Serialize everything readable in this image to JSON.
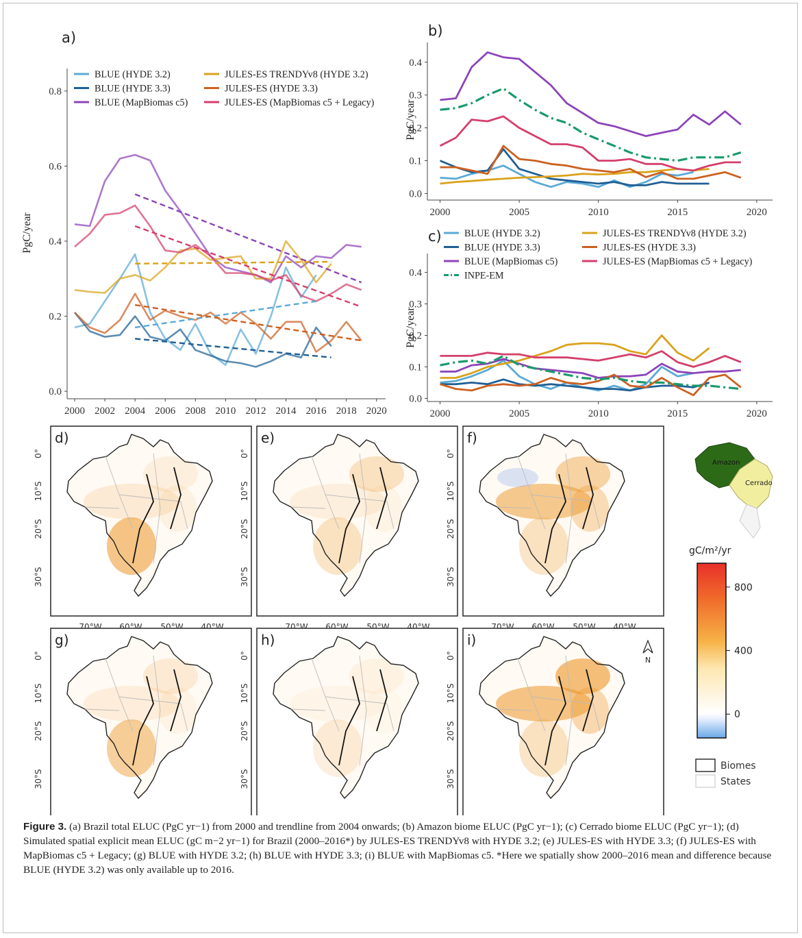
{
  "caption": {
    "label": "Figure 3.",
    "text": "(a) Brazil total ELUC (PgC yr−1) from 2000 and trendline from 2004 onwards; (b) Amazon biome ELUC (PgC yr−1); (c) Cerrado biome ELUC (PgC yr−1); (d) Simulated spatial explicit mean ELUC (gC m−2 yr−1) for Brazil (2000–2016*) by JULES-ES TRENDYv8 with HYDE 3.2; (e) JULES-ES with HYDE 3.3; (f) JULES-ES with MapBiomas c5 + Legacy; (g) BLUE with HYDE 3.2; (h) BLUE with HYDE 3.3; (i) BLUE with MapBiomas c5. *Here we spatially show 2000–2016 mean and difference because BLUE (HYDE 3.2) was only available up to 2016."
  },
  "colors": {
    "blue_h32": "#5aa9d6",
    "blue_h33": "#1f5f94",
    "blue_mb": "#8c44b8",
    "jules_t8": "#d9a21b",
    "jules_h33": "#cc6020",
    "jules_mb": "#d43e6a",
    "inpe": "#1a9a6a"
  },
  "legend": {
    "blue_h32": "BLUE (HYDE 3.2)",
    "blue_h33": "BLUE (HYDE 3.3)",
    "blue_mb": "BLUE (MapBiomas c5)",
    "jules_t8": "JULES-ES TRENDYv8 (HYDE 3.2)",
    "jules_h33": "JULES-ES (HYDE 3.3)",
    "jules_mb": "JULES-ES (MapBiomas c5 + Legacy)",
    "inpe": "INPE-EM"
  },
  "chart_data": [
    {
      "panel": "a)",
      "type": "line",
      "ylabel": "PgC/year",
      "xlim": [
        1999.5,
        2020.6
      ],
      "ylim": [
        -0.02,
        0.86
      ],
      "xticks": [
        "2000",
        "2002",
        "2004",
        "2006",
        "2008",
        "2010",
        "2012",
        "2014",
        "2016",
        "2018",
        "2020"
      ],
      "yticks": [
        "0.0",
        "0.2",
        "0.4",
        "0.6",
        "0.8"
      ],
      "x": [
        2000,
        2001,
        2002,
        2003,
        2004,
        2005,
        2006,
        2007,
        2008,
        2009,
        2010,
        2011,
        2012,
        2013,
        2014,
        2015,
        2016,
        2017,
        2018,
        2019
      ],
      "series": [
        {
          "key": "blue_h32",
          "values": [
            0.17,
            0.18,
            0.24,
            0.3,
            0.365,
            0.21,
            0.14,
            0.11,
            0.18,
            0.1,
            0.07,
            0.165,
            0.1,
            0.2,
            0.33,
            0.25,
            0.31,
            null,
            null,
            null
          ]
        },
        {
          "key": "blue_h33",
          "values": [
            0.21,
            0.16,
            0.145,
            0.15,
            0.2,
            0.145,
            0.135,
            0.165,
            0.11,
            0.095,
            0.08,
            0.075,
            0.065,
            0.08,
            0.1,
            0.09,
            0.17,
            0.12,
            null,
            null
          ]
        },
        {
          "key": "blue_mb",
          "values": [
            0.445,
            0.44,
            0.56,
            0.62,
            0.63,
            0.615,
            0.535,
            0.48,
            0.42,
            0.36,
            0.33,
            0.32,
            0.31,
            0.29,
            0.36,
            0.33,
            0.36,
            0.355,
            0.39,
            0.385
          ]
        },
        {
          "key": "jules_t8",
          "values": [
            0.27,
            0.265,
            0.262,
            0.3,
            0.31,
            0.295,
            0.33,
            0.375,
            0.38,
            0.35,
            0.355,
            0.36,
            0.3,
            0.3,
            0.4,
            0.35,
            0.29,
            0.34,
            null,
            null
          ]
        },
        {
          "key": "jules_h33",
          "values": [
            0.21,
            0.17,
            0.155,
            0.19,
            0.26,
            0.19,
            0.215,
            0.2,
            0.19,
            0.21,
            0.18,
            0.21,
            0.18,
            0.14,
            0.185,
            0.185,
            0.105,
            0.135,
            0.185,
            0.135
          ]
        },
        {
          "key": "jules_mb",
          "values": [
            0.385,
            0.42,
            0.47,
            0.475,
            0.495,
            0.44,
            0.375,
            0.37,
            0.39,
            0.36,
            0.315,
            0.315,
            0.31,
            0.295,
            0.31,
            0.255,
            0.24,
            0.26,
            0.285,
            0.27
          ]
        }
      ],
      "trends": [
        {
          "key": "blue_mb",
          "x": [
            2004,
            2019
          ],
          "y": [
            0.525,
            0.29
          ]
        },
        {
          "key": "jules_mb",
          "x": [
            2004,
            2019
          ],
          "y": [
            0.44,
            0.225
          ]
        },
        {
          "key": "jules_t8",
          "x": [
            2004,
            2017
          ],
          "y": [
            0.34,
            0.345
          ]
        },
        {
          "key": "blue_h32",
          "x": [
            2004,
            2016
          ],
          "y": [
            0.17,
            0.24
          ]
        },
        {
          "key": "jules_h33",
          "x": [
            2004,
            2019
          ],
          "y": [
            0.23,
            0.135
          ]
        },
        {
          "key": "blue_h33",
          "x": [
            2004,
            2017
          ],
          "y": [
            0.14,
            0.09
          ]
        }
      ]
    },
    {
      "panel": "b)",
      "type": "line",
      "ylabel": "PgC/year",
      "xlim": [
        1999.2,
        2021
      ],
      "ylim": [
        -0.02,
        0.46
      ],
      "xticks": [
        "2000",
        "2005",
        "2010",
        "2015",
        "2020"
      ],
      "yticks": [
        "0.0",
        "0.1",
        "0.2",
        "0.3",
        "0.4"
      ],
      "x": [
        2000,
        2001,
        2002,
        2003,
        2004,
        2005,
        2006,
        2007,
        2008,
        2009,
        2010,
        2011,
        2012,
        2013,
        2014,
        2015,
        2016,
        2017,
        2018,
        2019
      ],
      "series": [
        {
          "key": "blue_h32",
          "values": [
            0.048,
            0.045,
            0.06,
            0.07,
            0.085,
            0.06,
            0.035,
            0.02,
            0.035,
            0.03,
            0.02,
            0.04,
            0.02,
            0.035,
            0.06,
            0.055,
            0.065,
            null,
            null,
            null
          ]
        },
        {
          "key": "blue_h33",
          "values": [
            0.1,
            0.08,
            0.065,
            0.07,
            0.135,
            0.075,
            0.06,
            0.045,
            0.04,
            0.035,
            0.03,
            0.035,
            0.025,
            0.025,
            0.035,
            0.03,
            0.03,
            0.03,
            null,
            null
          ]
        },
        {
          "key": "blue_mb",
          "values": [
            0.285,
            0.29,
            0.385,
            0.43,
            0.415,
            0.41,
            0.37,
            0.33,
            0.275,
            0.245,
            0.215,
            0.205,
            0.19,
            0.175,
            0.185,
            0.195,
            0.24,
            0.21,
            0.25,
            0.21
          ]
        },
        {
          "key": "jules_t8",
          "values": [
            0.03,
            0.035,
            0.038,
            0.042,
            0.045,
            0.048,
            0.05,
            0.052,
            0.055,
            0.06,
            0.058,
            0.06,
            0.065,
            0.065,
            0.07,
            0.075,
            0.07,
            0.075,
            null,
            null
          ]
        },
        {
          "key": "jules_h33",
          "values": [
            0.08,
            0.08,
            0.07,
            0.06,
            0.145,
            0.105,
            0.1,
            0.09,
            0.085,
            0.075,
            0.07,
            0.065,
            0.075,
            0.05,
            0.065,
            0.045,
            0.045,
            0.055,
            0.065,
            0.048
          ]
        },
        {
          "key": "jules_mb",
          "values": [
            0.145,
            0.17,
            0.225,
            0.22,
            0.235,
            0.2,
            0.175,
            0.15,
            0.15,
            0.14,
            0.1,
            0.1,
            0.105,
            0.09,
            0.09,
            0.075,
            0.07,
            0.085,
            0.095,
            0.095
          ]
        },
        {
          "key": "inpe",
          "dash": true,
          "values": [
            0.255,
            0.26,
            0.275,
            0.3,
            0.32,
            0.285,
            0.255,
            0.23,
            0.215,
            0.185,
            0.165,
            0.145,
            0.125,
            0.11,
            0.105,
            0.1,
            0.11,
            0.11,
            0.11,
            0.125
          ]
        }
      ]
    },
    {
      "panel": "c)",
      "type": "line",
      "ylabel": "PgC/year",
      "xlim": [
        1999.2,
        2021
      ],
      "ylim": [
        -0.01,
        0.46
      ],
      "xticks": [
        "2000",
        "2005",
        "2010",
        "2015",
        "2020"
      ],
      "yticks": [
        "0.0",
        "0.1",
        "0.2",
        "0.3",
        "0.4"
      ],
      "x": [
        2000,
        2001,
        2002,
        2003,
        2004,
        2005,
        2006,
        2007,
        2008,
        2009,
        2010,
        2011,
        2012,
        2013,
        2014,
        2015,
        2016,
        2017,
        2018,
        2019
      ],
      "series": [
        {
          "key": "blue_h32",
          "values": [
            0.05,
            0.055,
            0.07,
            0.09,
            0.12,
            0.07,
            0.045,
            0.03,
            0.05,
            0.035,
            0.025,
            0.04,
            0.025,
            0.045,
            0.1,
            0.07,
            0.08,
            null,
            null,
            null
          ]
        },
        {
          "key": "blue_h33",
          "values": [
            0.045,
            0.045,
            0.05,
            0.045,
            0.06,
            0.045,
            0.04,
            0.045,
            0.04,
            0.035,
            0.03,
            0.03,
            0.025,
            0.035,
            0.04,
            0.04,
            0.035,
            0.05,
            null,
            null
          ]
        },
        {
          "key": "blue_mb",
          "values": [
            0.085,
            0.085,
            0.105,
            0.11,
            0.125,
            0.11,
            0.095,
            0.09,
            0.085,
            0.08,
            0.065,
            0.07,
            0.07,
            0.075,
            0.11,
            0.085,
            0.08,
            0.085,
            0.085,
            0.09
          ]
        },
        {
          "key": "jules_t8",
          "values": [
            0.065,
            0.065,
            0.08,
            0.1,
            0.11,
            0.12,
            0.135,
            0.15,
            0.17,
            0.175,
            0.175,
            0.17,
            0.15,
            0.14,
            0.2,
            0.145,
            0.12,
            0.16,
            null,
            null
          ]
        },
        {
          "key": "jules_h33",
          "values": [
            0.045,
            0.03,
            0.025,
            0.04,
            0.045,
            0.04,
            0.045,
            0.065,
            0.05,
            0.045,
            0.055,
            0.075,
            0.04,
            0.035,
            0.065,
            0.035,
            0.01,
            0.065,
            0.075,
            0.035
          ]
        },
        {
          "key": "jules_mb",
          "values": [
            0.135,
            0.135,
            0.135,
            0.145,
            0.14,
            0.14,
            0.13,
            0.13,
            0.13,
            0.125,
            0.12,
            0.13,
            0.14,
            0.13,
            0.15,
            0.115,
            0.1,
            0.115,
            0.135,
            0.115
          ]
        },
        {
          "key": "inpe",
          "dash": true,
          "values": [
            0.105,
            0.115,
            0.12,
            0.11,
            0.135,
            0.105,
            0.095,
            0.085,
            0.075,
            0.065,
            0.06,
            0.065,
            0.055,
            0.05,
            0.05,
            0.045,
            0.04,
            0.04,
            0.035,
            0.03
          ]
        }
      ]
    }
  ],
  "maps": {
    "panels": [
      "d)",
      "e)",
      "f)",
      "g)",
      "h)",
      "i)"
    ],
    "yticks": [
      "0°",
      "10°S",
      "20°S",
      "30°S"
    ],
    "xticks": [
      "70°W",
      "60°W",
      "50°W",
      "40°W"
    ],
    "colorbar": {
      "unit": "gC/m²/yr",
      "ticks": [
        "800",
        "400",
        "0"
      ],
      "range": [
        -150,
        950
      ]
    },
    "legend_biomes": "Biomes",
    "legend_states": "States",
    "inset_amazon": "Amazon",
    "inset_cerrado": "Cerrado",
    "north": "N",
    "intensity_south": [
      0.55,
      0.25,
      0.25,
      0.45,
      0.15,
      0.25
    ],
    "intensity_center": [
      0.15,
      0.1,
      0.5,
      0.12,
      0.05,
      0.55
    ],
    "intensity_north": [
      0.1,
      0.25,
      0.4,
      0.15,
      0.08,
      0.6
    ]
  }
}
